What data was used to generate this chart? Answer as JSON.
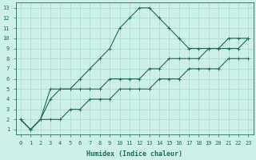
{
  "xlabel": "Humidex (Indice chaleur)",
  "xlim": [
    -0.5,
    23.5
  ],
  "ylim": [
    0.5,
    13.5
  ],
  "xticks": [
    0,
    1,
    2,
    3,
    4,
    5,
    6,
    7,
    8,
    9,
    10,
    11,
    12,
    13,
    14,
    15,
    16,
    17,
    18,
    19,
    20,
    21,
    22,
    23
  ],
  "yticks": [
    1,
    2,
    3,
    4,
    5,
    6,
    7,
    8,
    9,
    10,
    11,
    12,
    13
  ],
  "background_color": "#ceeee8",
  "grid_color": "#a8d8cc",
  "line_color": "#1e6e5a",
  "line1_x": [
    0,
    1,
    2,
    3,
    4,
    5,
    6,
    7,
    8,
    9,
    10,
    11,
    12,
    13,
    14,
    15,
    16,
    17,
    18,
    19,
    20,
    21,
    22,
    23
  ],
  "line1_y": [
    2,
    1,
    2,
    5,
    5,
    5,
    6,
    7,
    8,
    9,
    11,
    12,
    13,
    13,
    12,
    11,
    10,
    9,
    9,
    9,
    9,
    10,
    10,
    10
  ],
  "line2_x": [
    0,
    1,
    2,
    3,
    4,
    5,
    6,
    7,
    8,
    9,
    10,
    11,
    12,
    13,
    14,
    15,
    16,
    17,
    18,
    19,
    20,
    21,
    22,
    23
  ],
  "line2_y": [
    2,
    1,
    2,
    4,
    5,
    5,
    5,
    5,
    5,
    6,
    6,
    6,
    6,
    7,
    7,
    8,
    8,
    8,
    8,
    9,
    9,
    9,
    9,
    10
  ],
  "line3_x": [
    0,
    1,
    2,
    3,
    4,
    5,
    6,
    7,
    8,
    9,
    10,
    11,
    12,
    13,
    14,
    15,
    16,
    17,
    18,
    19,
    20,
    21,
    22,
    23
  ],
  "line3_y": [
    2,
    1,
    2,
    2,
    2,
    3,
    3,
    4,
    4,
    4,
    5,
    5,
    5,
    5,
    6,
    6,
    6,
    7,
    7,
    7,
    7,
    8,
    8,
    8
  ],
  "marker": "+",
  "lw": 0.8,
  "ms": 2.5,
  "tick_fontsize": 5.0,
  "xlabel_fontsize": 6.0
}
